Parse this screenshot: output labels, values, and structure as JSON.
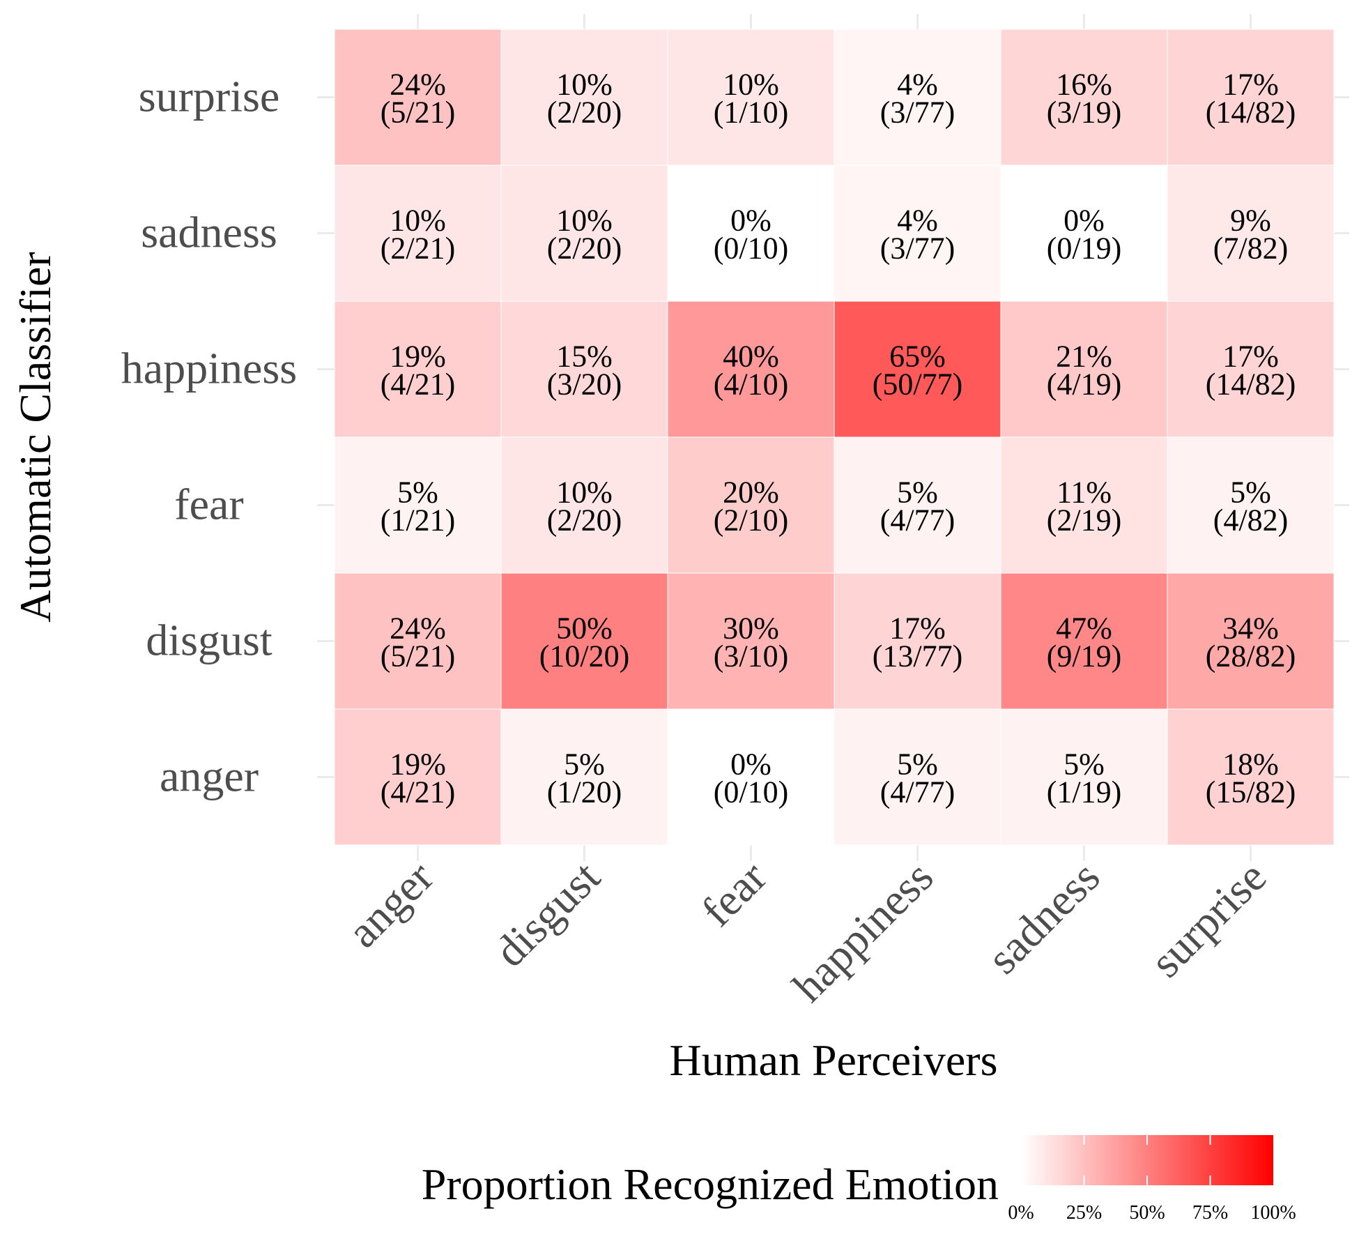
{
  "chart_data": {
    "type": "heatmap",
    "xlabel": "Human Perceivers",
    "ylabel": "Automatic Classifier",
    "x_categories": [
      "anger",
      "disgust",
      "fear",
      "happiness",
      "sadness",
      "surprise"
    ],
    "y_categories": [
      "surprise",
      "sadness",
      "happiness",
      "fear",
      "disgust",
      "anger"
    ],
    "cells": [
      [
        {
          "pct": "24%",
          "frac": "(5/21)",
          "value": 0.24
        },
        {
          "pct": "10%",
          "frac": "(2/20)",
          "value": 0.1
        },
        {
          "pct": "10%",
          "frac": "(1/10)",
          "value": 0.1
        },
        {
          "pct": "4%",
          "frac": "(3/77)",
          "value": 0.04
        },
        {
          "pct": "16%",
          "frac": "(3/19)",
          "value": 0.16
        },
        {
          "pct": "17%",
          "frac": "(14/82)",
          "value": 0.17
        }
      ],
      [
        {
          "pct": "10%",
          "frac": "(2/21)",
          "value": 0.1
        },
        {
          "pct": "10%",
          "frac": "(2/20)",
          "value": 0.1
        },
        {
          "pct": "0%",
          "frac": "(0/10)",
          "value": 0.0
        },
        {
          "pct": "4%",
          "frac": "(3/77)",
          "value": 0.04
        },
        {
          "pct": "0%",
          "frac": "(0/19)",
          "value": 0.0
        },
        {
          "pct": "9%",
          "frac": "(7/82)",
          "value": 0.09
        }
      ],
      [
        {
          "pct": "19%",
          "frac": "(4/21)",
          "value": 0.19
        },
        {
          "pct": "15%",
          "frac": "(3/20)",
          "value": 0.15
        },
        {
          "pct": "40%",
          "frac": "(4/10)",
          "value": 0.4
        },
        {
          "pct": "65%",
          "frac": "(50/77)",
          "value": 0.65
        },
        {
          "pct": "21%",
          "frac": "(4/19)",
          "value": 0.21
        },
        {
          "pct": "17%",
          "frac": "(14/82)",
          "value": 0.17
        }
      ],
      [
        {
          "pct": "5%",
          "frac": "(1/21)",
          "value": 0.05
        },
        {
          "pct": "10%",
          "frac": "(2/20)",
          "value": 0.1
        },
        {
          "pct": "20%",
          "frac": "(2/10)",
          "value": 0.2
        },
        {
          "pct": "5%",
          "frac": "(4/77)",
          "value": 0.05
        },
        {
          "pct": "11%",
          "frac": "(2/19)",
          "value": 0.11
        },
        {
          "pct": "5%",
          "frac": "(4/82)",
          "value": 0.05
        }
      ],
      [
        {
          "pct": "24%",
          "frac": "(5/21)",
          "value": 0.24
        },
        {
          "pct": "50%",
          "frac": "(10/20)",
          "value": 0.5
        },
        {
          "pct": "30%",
          "frac": "(3/10)",
          "value": 0.3
        },
        {
          "pct": "17%",
          "frac": "(13/77)",
          "value": 0.17
        },
        {
          "pct": "47%",
          "frac": "(9/19)",
          "value": 0.47
        },
        {
          "pct": "34%",
          "frac": "(28/82)",
          "value": 0.34
        }
      ],
      [
        {
          "pct": "19%",
          "frac": "(4/21)",
          "value": 0.19
        },
        {
          "pct": "5%",
          "frac": "(1/20)",
          "value": 0.05
        },
        {
          "pct": "0%",
          "frac": "(0/10)",
          "value": 0.0
        },
        {
          "pct": "5%",
          "frac": "(4/77)",
          "value": 0.05
        },
        {
          "pct": "5%",
          "frac": "(1/19)",
          "value": 0.05
        },
        {
          "pct": "18%",
          "frac": "(15/82)",
          "value": 0.18
        }
      ]
    ],
    "legend": {
      "title": "Proportion Recognized Emotion",
      "ticks": [
        "0%",
        "25%",
        "50%",
        "75%",
        "100%"
      ],
      "tick_values": [
        0,
        0.25,
        0.5,
        0.75,
        1.0
      ],
      "placement": "bottom",
      "low_color": "#ffffff",
      "high_color": "#ff0000"
    },
    "grid": true
  }
}
